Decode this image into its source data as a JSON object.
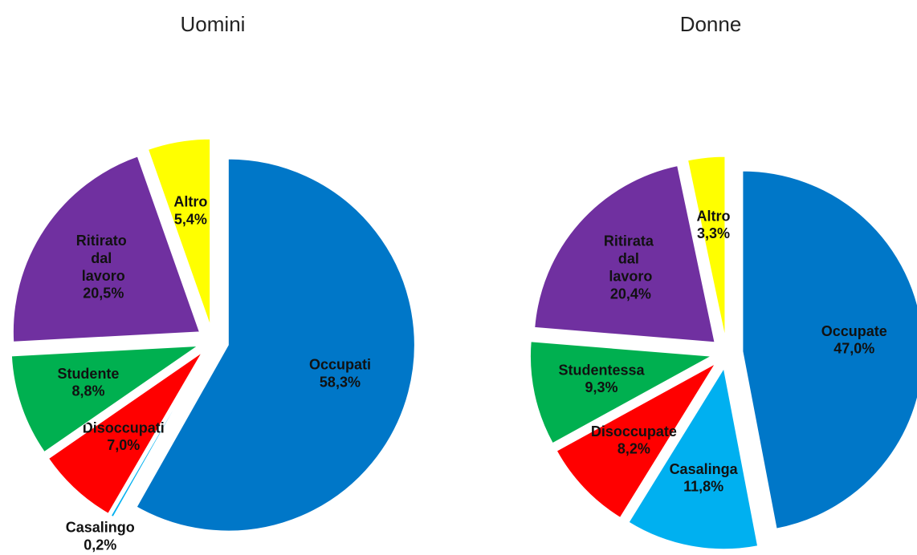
{
  "chart_data": [
    {
      "type": "pie",
      "title": "Uomini",
      "categories": [
        "Occupati",
        "Casalingo",
        "Disoccupati",
        "Studente",
        "Ritirato dal lavoro",
        "Altro"
      ],
      "values": [
        58.3,
        0.2,
        7.0,
        8.8,
        20.5,
        5.4
      ],
      "value_labels": [
        "58,3%",
        "0,2%",
        "7,0%",
        "8,8%",
        "20,5%",
        "5,4%"
      ],
      "colors": [
        "#0077c8",
        "#00b0f0",
        "#ff0000",
        "#00b050",
        "#7030a0",
        "#ffff00"
      ]
    },
    {
      "type": "pie",
      "title": "Donne",
      "categories": [
        "Occupate",
        "Casalinga",
        "Disoccupate",
        "Studentessa",
        "Ritirata dal lavoro",
        "Altro"
      ],
      "values": [
        47.0,
        11.8,
        8.2,
        9.3,
        20.4,
        3.3
      ],
      "value_labels": [
        "47,0%",
        "11,8%",
        "8,2%",
        "9,3%",
        "20,4%",
        "3,3%"
      ],
      "colors": [
        "#0077c8",
        "#00b0f0",
        "#ff0000",
        "#00b050",
        "#7030a0",
        "#ffff00"
      ]
    }
  ]
}
